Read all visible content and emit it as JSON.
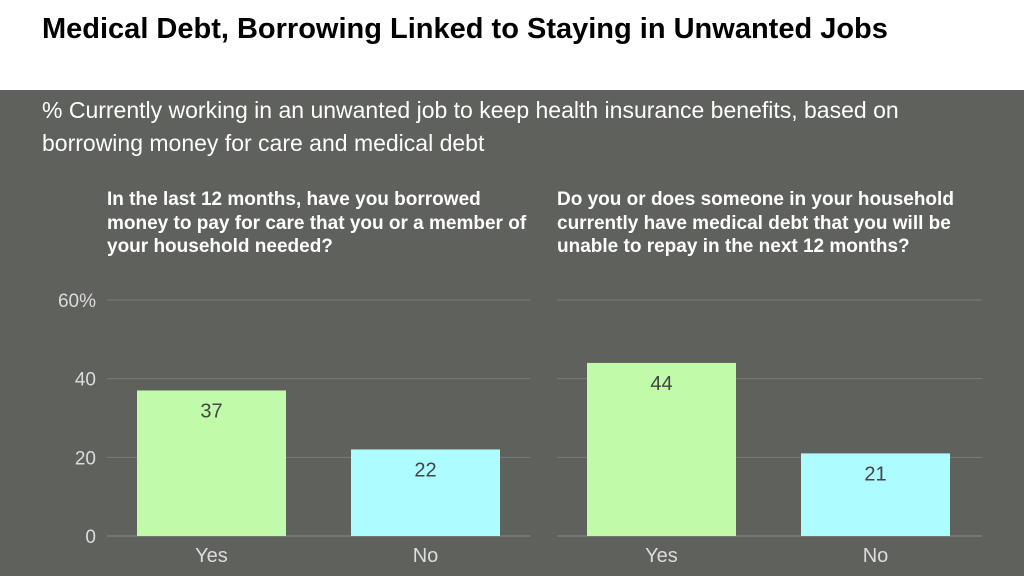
{
  "title": "Medical Debt, Borrowing Linked to Staying in Unwanted Jobs",
  "subtitle": "% Currently working in an unwanted job to keep health insurance benefits, based on borrowing money for care and medical debt",
  "colors": {
    "background": "#5f615c",
    "title_band": "#ffffff",
    "yes_bar": "#c0fbaa",
    "no_bar": "#adfcff",
    "gridline": "#7b7d78",
    "axis_text": "#dcdcdc",
    "label_text": "#444444"
  },
  "chart_data": [
    {
      "type": "bar",
      "title": "In the last 12 months, have you borrowed money to pay for care that you or a member of your household needed?",
      "categories": [
        "Yes",
        "No"
      ],
      "values": [
        37,
        22
      ],
      "data_labels": [
        "37",
        "22"
      ],
      "ylim": [
        0,
        60
      ],
      "yticks": [
        0,
        20,
        40,
        60
      ],
      "ytick_labels": [
        "0",
        "20",
        "40",
        "60%"
      ],
      "grid": true
    },
    {
      "type": "bar",
      "title": "Do you or does someone in your household currently have medical debt that you will be unable to repay in the next 12 months?",
      "categories": [
        "Yes",
        "No"
      ],
      "values": [
        44,
        21
      ],
      "data_labels": [
        "44",
        "21"
      ],
      "ylim": [
        0,
        60
      ],
      "yticks": [
        0,
        20,
        40,
        60
      ],
      "grid": true
    }
  ]
}
